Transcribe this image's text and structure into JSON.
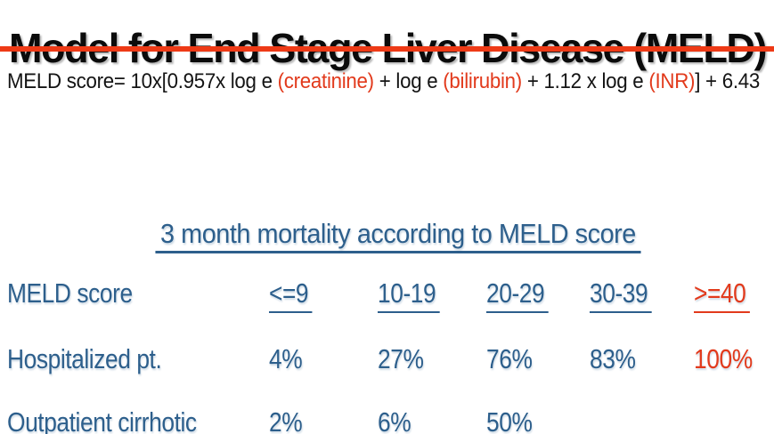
{
  "slide": {
    "title": "Model for End Stage Liver Disease (MELD)"
  },
  "colors": {
    "blue": "#2d5f8c",
    "red": "#e23a1c",
    "rule_red": "#ee3a16",
    "title_ink": "#0b0b0b"
  },
  "formula": {
    "segments": [
      {
        "text": "MELD score= 10x[0.957x log e ",
        "color": "black"
      },
      {
        "text": "(creatinine)",
        "color": "red"
      },
      {
        "text": " + log e ",
        "color": "black"
      },
      {
        "text": "(bilirubin)",
        "color": "red"
      },
      {
        "text": " + 1.12 x log e ",
        "color": "black"
      },
      {
        "text": "(INR)",
        "color": "red"
      },
      {
        "text": "] + 6.43",
        "color": "black"
      }
    ]
  },
  "mortality": {
    "heading": "3 month mortality according to MELD score",
    "header": {
      "label": "MELD score",
      "columns": [
        {
          "text": "<=9",
          "color": "blue"
        },
        {
          "text": "10-19",
          "color": "blue"
        },
        {
          "text": "20-29",
          "color": "blue"
        },
        {
          "text": "30-39",
          "color": "blue"
        },
        {
          "text": ">=40",
          "color": "red"
        }
      ]
    },
    "rows": [
      {
        "label": "Hospitalized pt.",
        "values": [
          {
            "text": "4%",
            "color": "blue"
          },
          {
            "text": "27%",
            "color": "blue"
          },
          {
            "text": "76%",
            "color": "blue"
          },
          {
            "text": "83%",
            "color": "blue"
          },
          {
            "text": "100%",
            "color": "red"
          }
        ]
      },
      {
        "label": "Outpatient cirrhotic",
        "values": [
          {
            "text": "2%",
            "color": "blue"
          },
          {
            "text": "6%",
            "color": "blue"
          },
          {
            "text": "50%",
            "color": "blue"
          }
        ]
      }
    ]
  }
}
